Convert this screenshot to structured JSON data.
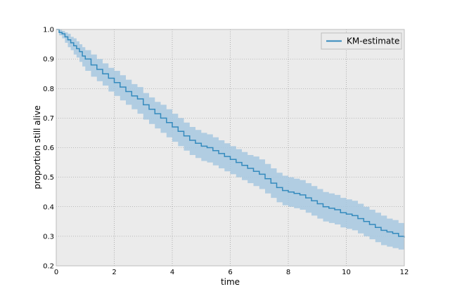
{
  "chart_data": {
    "type": "line",
    "title": "",
    "xlabel": "time",
    "ylabel": "proportion still alive",
    "xlim": [
      0,
      12
    ],
    "ylim": [
      0.2,
      1.0
    ],
    "xticks": [
      0,
      2,
      4,
      6,
      8,
      10,
      12
    ],
    "yticks": [
      0.2,
      0.3,
      0.4,
      0.5,
      0.6,
      0.7,
      0.8,
      0.9,
      1.0
    ],
    "xtick_labels": [
      "0",
      "2",
      "4",
      "6",
      "8",
      "10",
      "12"
    ],
    "ytick_labels": [
      "0.2",
      "0.3",
      "0.4",
      "0.5",
      "0.6",
      "0.7",
      "0.8",
      "0.9",
      "1.0"
    ],
    "grid": true,
    "legend_position": "top-right",
    "series": [
      {
        "name": "KM-estimate",
        "color": "#348abd",
        "band_color": "#a7c8e0",
        "step": true,
        "x": [
          0,
          0.1,
          0.2,
          0.3,
          0.4,
          0.5,
          0.6,
          0.7,
          0.8,
          0.9,
          1.0,
          1.2,
          1.4,
          1.6,
          1.8,
          2.0,
          2.2,
          2.4,
          2.6,
          2.8,
          3.0,
          3.2,
          3.4,
          3.6,
          3.8,
          4.0,
          4.2,
          4.4,
          4.6,
          4.8,
          5.0,
          5.2,
          5.4,
          5.6,
          5.8,
          6.0,
          6.2,
          6.4,
          6.6,
          6.8,
          7.0,
          7.2,
          7.4,
          7.6,
          7.8,
          8.0,
          8.2,
          8.4,
          8.6,
          8.8,
          9.0,
          9.2,
          9.4,
          9.6,
          9.8,
          10.0,
          10.2,
          10.4,
          10.6,
          10.8,
          11.0,
          11.2,
          11.4,
          11.6,
          11.8,
          12.0
        ],
        "y": [
          1.0,
          0.99,
          0.985,
          0.975,
          0.965,
          0.955,
          0.945,
          0.935,
          0.925,
          0.91,
          0.9,
          0.88,
          0.865,
          0.85,
          0.835,
          0.82,
          0.805,
          0.79,
          0.775,
          0.765,
          0.745,
          0.73,
          0.715,
          0.7,
          0.685,
          0.67,
          0.655,
          0.64,
          0.625,
          0.615,
          0.605,
          0.6,
          0.59,
          0.58,
          0.57,
          0.56,
          0.55,
          0.54,
          0.53,
          0.52,
          0.51,
          0.495,
          0.48,
          0.465,
          0.455,
          0.45,
          0.445,
          0.44,
          0.43,
          0.42,
          0.41,
          0.4,
          0.395,
          0.39,
          0.38,
          0.375,
          0.37,
          0.36,
          0.35,
          0.34,
          0.33,
          0.32,
          0.315,
          0.31,
          0.3,
          0.295
        ],
        "ci_lower": [
          1.0,
          0.98,
          0.97,
          0.955,
          0.94,
          0.93,
          0.915,
          0.905,
          0.89,
          0.875,
          0.86,
          0.84,
          0.825,
          0.81,
          0.79,
          0.775,
          0.76,
          0.745,
          0.73,
          0.715,
          0.695,
          0.68,
          0.665,
          0.65,
          0.635,
          0.62,
          0.605,
          0.59,
          0.575,
          0.565,
          0.555,
          0.55,
          0.54,
          0.53,
          0.52,
          0.51,
          0.5,
          0.49,
          0.48,
          0.47,
          0.46,
          0.445,
          0.43,
          0.415,
          0.405,
          0.4,
          0.395,
          0.39,
          0.38,
          0.37,
          0.36,
          0.35,
          0.345,
          0.34,
          0.33,
          0.325,
          0.32,
          0.31,
          0.3,
          0.29,
          0.28,
          0.27,
          0.265,
          0.26,
          0.255,
          0.255
        ],
        "ci_upper": [
          1.0,
          1.0,
          0.995,
          0.99,
          0.985,
          0.975,
          0.97,
          0.96,
          0.95,
          0.94,
          0.93,
          0.915,
          0.9,
          0.885,
          0.87,
          0.86,
          0.845,
          0.83,
          0.815,
          0.805,
          0.785,
          0.77,
          0.755,
          0.745,
          0.73,
          0.715,
          0.7,
          0.685,
          0.67,
          0.66,
          0.65,
          0.645,
          0.635,
          0.625,
          0.615,
          0.605,
          0.595,
          0.585,
          0.575,
          0.57,
          0.56,
          0.545,
          0.53,
          0.515,
          0.505,
          0.5,
          0.495,
          0.49,
          0.48,
          0.47,
          0.46,
          0.45,
          0.445,
          0.44,
          0.43,
          0.425,
          0.42,
          0.41,
          0.4,
          0.39,
          0.38,
          0.37,
          0.36,
          0.355,
          0.345,
          0.335
        ]
      }
    ]
  },
  "colors": {
    "plot_background": "#ebebeb",
    "grid": "#888888"
  }
}
